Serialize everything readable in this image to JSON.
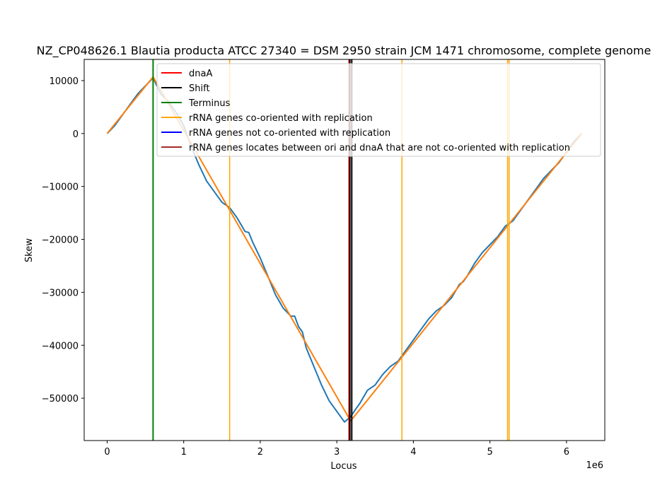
{
  "chart_data": {
    "type": "line",
    "title": "NZ_CP048626.1 Blautia producta ATCC 27340 = DSM 2950 strain JCM 1471 chromosome, complete genome",
    "xlabel": "Locus",
    "ylabel": "Skew",
    "x_offset_label": "1e6",
    "xlim": [
      -300000,
      6500000
    ],
    "ylim": [
      -58000,
      14000
    ],
    "x_ticks": [
      0,
      1000000,
      2000000,
      3000000,
      4000000,
      5000000,
      6000000
    ],
    "x_tick_labels": [
      "0",
      "1",
      "2",
      "3",
      "4",
      "5",
      "6"
    ],
    "y_ticks": [
      10000,
      0,
      -10000,
      -20000,
      -30000,
      -40000,
      -50000
    ],
    "y_tick_labels": [
      "10000",
      "0",
      "−10000",
      "−20000",
      "−30000",
      "−40000",
      "−50000"
    ],
    "grid": false,
    "legend_position": "top-right",
    "legend": [
      {
        "label": "dnaA",
        "color": "#ff0000"
      },
      {
        "label": "Shift",
        "color": "#000000"
      },
      {
        "label": "Terminus",
        "color": "#008000"
      },
      {
        "label": "rRNA genes co-oriented with replication",
        "color": "#ffa500"
      },
      {
        "label": "rRNA genes not co-oriented with replication",
        "color": "#0000ff"
      },
      {
        "label": "rRNA genes locates between ori and dnaA that are not co-oriented with replication",
        "color": "#a52a2a"
      }
    ],
    "series": [
      {
        "color": "#1f77b4",
        "x": [
          0,
          100000,
          200000,
          300000,
          400000,
          500000,
          600000,
          700000,
          800000,
          900000,
          1000000,
          1100000,
          1200000,
          1300000,
          1400000,
          1500000,
          1600000,
          1650000,
          1700000,
          1800000,
          1850000,
          1900000,
          2000000,
          2100000,
          2200000,
          2300000,
          2400000,
          2450000,
          2500000,
          2550000,
          2600000,
          2700000,
          2800000,
          2900000,
          3000000,
          3100000,
          3180000,
          3250000,
          3300000,
          3400000,
          3500000,
          3600000,
          3700000,
          3800000,
          3900000,
          4000000,
          4100000,
          4200000,
          4300000,
          4400000,
          4500000,
          4600000,
          4650000,
          4700000,
          4800000,
          4900000,
          5000000,
          5100000,
          5200000,
          5300000,
          5400000,
          5500000,
          5600000,
          5700000,
          5800000,
          5900000,
          6000000,
          6100000,
          6200000
        ],
        "y": [
          0,
          1500,
          3500,
          5500,
          7500,
          9000,
          10500,
          7500,
          6000,
          4000,
          1500,
          -2500,
          -6000,
          -9000,
          -11000,
          -13000,
          -14000,
          -15000,
          -16000,
          -18500,
          -18700,
          -20500,
          -23500,
          -27000,
          -30500,
          -33000,
          -34500,
          -34500,
          -36500,
          -37500,
          -40500,
          -44000,
          -47500,
          -50500,
          -52500,
          -54500,
          -53500,
          -52000,
          -51000,
          -48500,
          -47500,
          -45500,
          -44000,
          -43000,
          -41000,
          -39000,
          -37000,
          -35000,
          -33500,
          -32500,
          -31000,
          -28500,
          -28000,
          -27000,
          -24500,
          -22500,
          -21000,
          -19500,
          -17500,
          -16500,
          -14500,
          -12500,
          -10500,
          -8500,
          -7000,
          -5500,
          -3500,
          -1500,
          0
        ]
      },
      {
        "color": "#ff7f0e",
        "x": [
          0,
          600000,
          3180000,
          6200000
        ],
        "y": [
          0,
          10700,
          -54300,
          0
        ]
      }
    ],
    "vlines": [
      {
        "x": 600000,
        "color": "#008000",
        "width": 2
      },
      {
        "x": 1600000,
        "color": "#ffa500",
        "width": 1.5
      },
      {
        "x": 3850000,
        "color": "#ffa500",
        "width": 1.5
      },
      {
        "x": 5230000,
        "color": "#ffa500",
        "width": 1.5
      },
      {
        "x": 5250000,
        "color": "#ffa500",
        "width": 1.5
      },
      {
        "x": 3160000,
        "color": "#ff0000",
        "width": 2
      },
      {
        "x": 3170000,
        "color": "#000000",
        "width": 2
      },
      {
        "x": 3195000,
        "color": "#000000",
        "width": 2
      }
    ]
  }
}
